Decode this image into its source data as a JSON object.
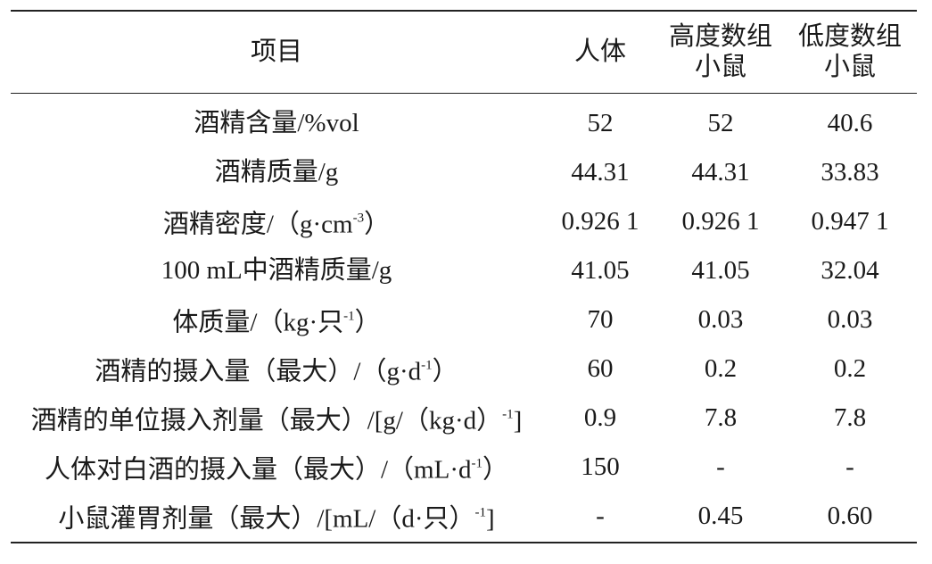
{
  "table": {
    "header": [
      [
        "项目"
      ],
      [
        "人体"
      ],
      [
        "高度数组",
        "小鼠"
      ],
      [
        "低度数组",
        "小鼠"
      ]
    ],
    "rows": [
      [
        [
          "酒精含量/%vol"
        ],
        "52",
        "52",
        "40.6"
      ],
      [
        [
          "酒精质量/g"
        ],
        "44.31",
        "44.31",
        "33.83"
      ],
      [
        [
          "酒精密度/（g·cm",
          "-3",
          "）"
        ],
        "0.926 1",
        "0.926 1",
        "0.947 1"
      ],
      [
        [
          "100 mL中酒精质量/g"
        ],
        "41.05",
        "41.05",
        "32.04"
      ],
      [
        [
          "体质量/（kg·只",
          "-1",
          "）"
        ],
        "70",
        "0.03",
        "0.03"
      ],
      [
        [
          "酒精的摄入量（最大）/（g·d",
          "-1",
          "）"
        ],
        "60",
        "0.2",
        "0.2"
      ],
      [
        [
          "酒精的单位摄入剂量（最大）/[g/（kg·d）",
          "-1",
          "]"
        ],
        "0.9",
        "7.8",
        "7.8"
      ],
      [
        [
          "人体对白酒的摄入量（最大）/（mL·d",
          "-1",
          "）"
        ],
        "150",
        "-",
        "-"
      ],
      [
        [
          "小鼠灌胃剂量（最大）/[mL/（d·只）",
          "-1",
          "]"
        ],
        "-",
        "0.45",
        "0.60"
      ]
    ]
  }
}
